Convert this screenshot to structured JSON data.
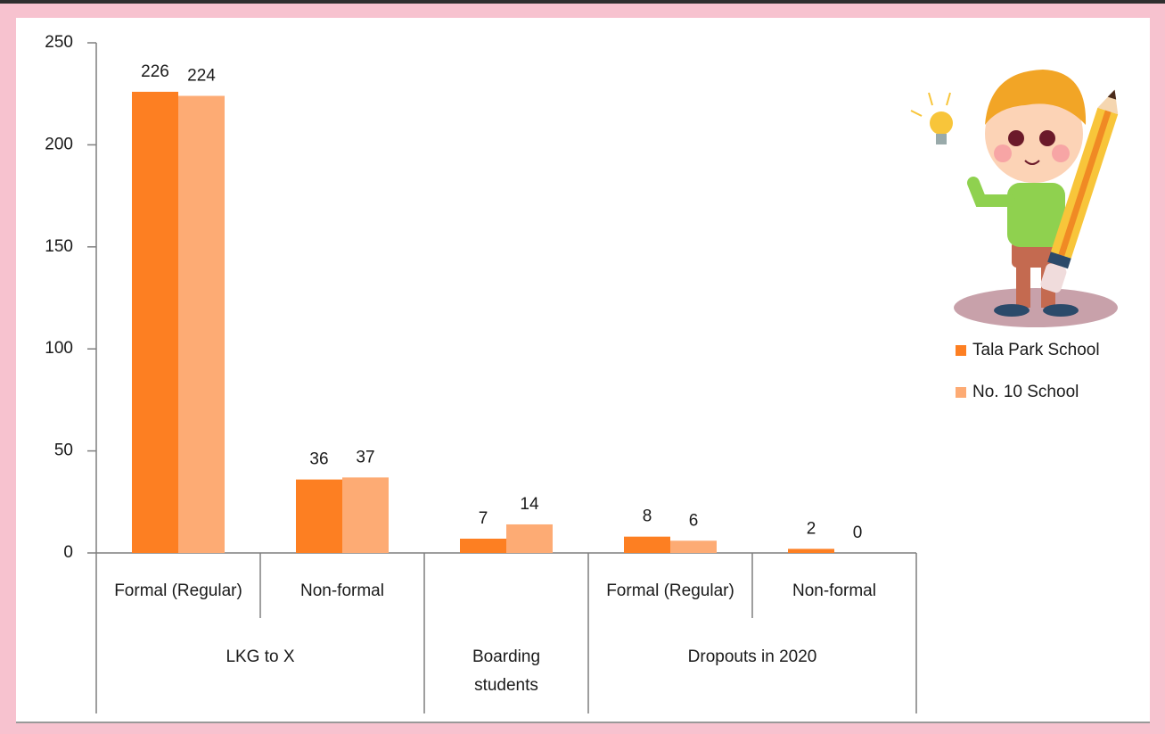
{
  "chart_data": {
    "type": "bar",
    "categories": [
      "Formal (Regular)",
      "Non-formal",
      null,
      "Formal (Regular)",
      "Non-formal"
    ],
    "category_groups": [
      "LKG to X",
      "LKG to X",
      "Boarding students",
      "Dropouts in 2020",
      "Dropouts in 2020"
    ],
    "series": [
      {
        "name": "Tala Park School",
        "color": "#fd7f22",
        "values": [
          226,
          36,
          7,
          8,
          2
        ]
      },
      {
        "name": "No. 10 School",
        "color": "#fdab74",
        "values": [
          224,
          37,
          14,
          6,
          0
        ]
      }
    ],
    "ylim": [
      0,
      250
    ],
    "yticks": [
      0,
      50,
      100,
      150,
      200,
      250
    ],
    "grid": false,
    "legend": "right"
  }
}
